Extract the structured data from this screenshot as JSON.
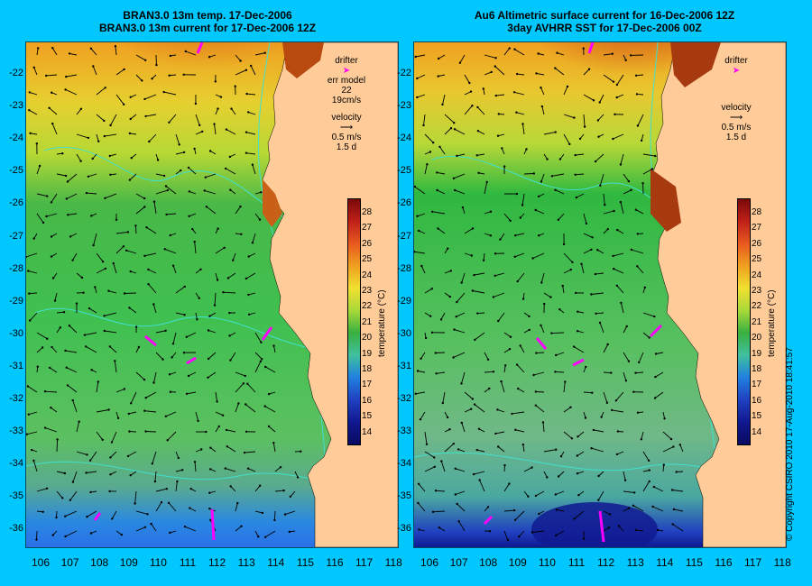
{
  "left_panel": {
    "title_line1": "BRAN3.0 13m temp. 17-Dec-2006",
    "title_line2": "BRAN3.0 13m current for 17-Dec-2006 12Z",
    "legend": {
      "drifter_label": "drifter",
      "err_model_label": "err model",
      "err_model_value": "22 19cm/s",
      "velocity_label": "velocity",
      "velocity_scale": "0.5 m/s",
      "time_scale": "1.5 d"
    }
  },
  "right_panel": {
    "title_line1": "Au6 Altimetric surface current for 16-Dec-2006 12Z",
    "title_line2": "3day AVHRR SST for 17-Dec-2006 00Z",
    "legend": {
      "drifter_label": "drifter",
      "velocity_label": "velocity",
      "velocity_scale": "0.5 m/s",
      "time_scale": "1.5 d"
    }
  },
  "colorbar": {
    "title": "temperature (°C)",
    "ticks": [
      "28",
      "27",
      "26",
      "25",
      "24",
      "23",
      "22",
      "21",
      "20",
      "19",
      "18",
      "17",
      "16",
      "15",
      "14"
    ],
    "range": [
      13.5,
      29
    ]
  },
  "axes": {
    "lat_labels": [
      "-22",
      "-23",
      "-24",
      "-25",
      "-26",
      "-27",
      "-28",
      "-29",
      "-30",
      "-31",
      "-32",
      "-33",
      "-34",
      "-35",
      "-36"
    ],
    "lon_labels": [
      "106",
      "107",
      "108",
      "109",
      "110",
      "111",
      "112",
      "113",
      "114",
      "115",
      "116",
      "117",
      "118"
    ]
  },
  "copyright": "© Copyright CSIRO 2010  17-Aug-2010 18:41:57",
  "colors": {
    "background": "#00c8ff",
    "land": "#ffcc99",
    "drifter": "#ff00ff",
    "contour": "#40e0d0",
    "arrow": "#000000"
  }
}
